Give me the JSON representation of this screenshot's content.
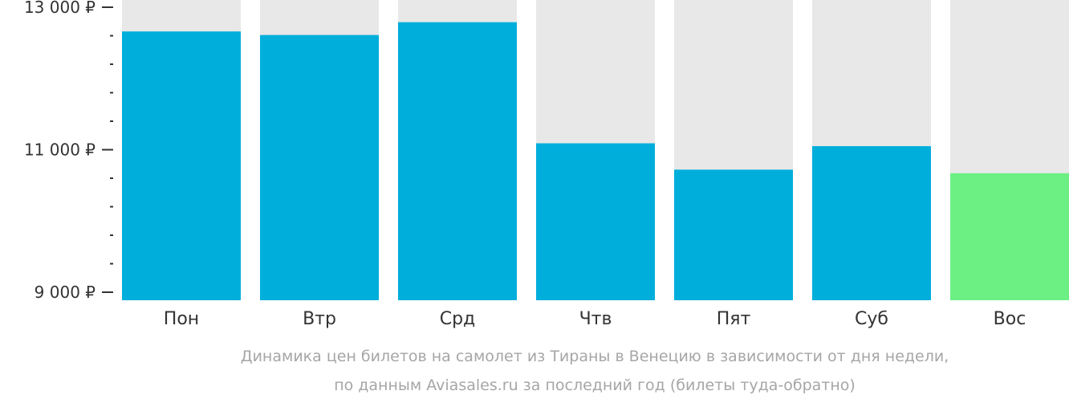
{
  "chart_data": {
    "type": "bar",
    "categories": [
      "Пон",
      "Втр",
      "Срд",
      "Чтв",
      "Пят",
      "Суб",
      "Вос"
    ],
    "values": [
      12660,
      12610,
      12790,
      11090,
      10720,
      11050,
      10670
    ],
    "ylim": [
      9000,
      13000
    ],
    "yticks": [
      {
        "value": 13000,
        "label": "13 000 ₽"
      },
      {
        "value": 11000,
        "label": "11 000 ₽"
      },
      {
        "value": 9000,
        "label": "9 000 ₽"
      }
    ],
    "minor_tick_step": 400,
    "highlight_index": 6,
    "colors": {
      "bar": "#00aedb",
      "highlight": "#6cf084",
      "background_bar": "#e8e8e8",
      "axis": "#333333",
      "text": "#333333",
      "caption": "#a6a6a6"
    },
    "grid": false,
    "legend": "none"
  },
  "caption": {
    "line1": "Динамика цен билетов на самолет из Тираны в Венецию в зависимости от дня недели,",
    "line2": "по данным Aviasales.ru за последний год (билеты туда-обратно)"
  }
}
